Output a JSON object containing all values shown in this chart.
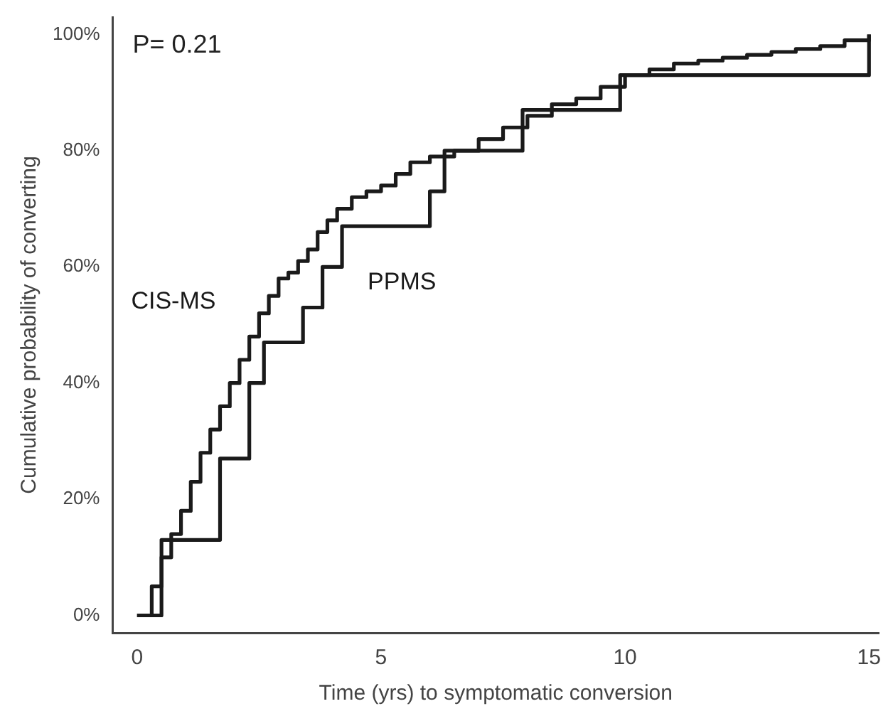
{
  "chart_data": {
    "type": "step",
    "xlabel": "Time (yrs) to symptomatic conversion",
    "ylabel": "Cumulative probability of converting",
    "annotations": [
      "P= 0.21"
    ],
    "xlim": [
      -0.5,
      15.2
    ],
    "xticks": [
      0,
      5,
      10,
      15
    ],
    "ylim": [
      -3,
      103
    ],
    "yticks": [
      {
        "value": 0,
        "label": "0%"
      },
      {
        "value": 20,
        "label": "20%"
      },
      {
        "value": 40,
        "label": "40%"
      },
      {
        "value": 60,
        "label": "60%"
      },
      {
        "value": 80,
        "label": "80%"
      },
      {
        "value": 100,
        "label": "100%"
      }
    ],
    "grid": false,
    "legend": false,
    "marker": "none",
    "line_style": "solid",
    "series": [
      {
        "name": "CIS-MS",
        "color": "#1a1a1a",
        "x": [
          0,
          0.3,
          0.5,
          0.7,
          0.9,
          1.1,
          1.3,
          1.5,
          1.7,
          1.9,
          2.1,
          2.3,
          2.5,
          2.7,
          2.9,
          3.1,
          3.3,
          3.5,
          3.7,
          3.9,
          4.1,
          4.4,
          4.7,
          5.0,
          5.3,
          5.6,
          6.0,
          6.5,
          7.0,
          7.5,
          8.0,
          8.5,
          9.0,
          9.5,
          10.0,
          10.5,
          11.0,
          11.5,
          12.0,
          12.5,
          13.0,
          13.5,
          14.0,
          14.5,
          15.0
        ],
        "values": [
          0,
          5,
          10,
          14,
          18,
          23,
          28,
          32,
          36,
          40,
          44,
          48,
          52,
          55,
          58,
          59,
          61,
          63,
          66,
          68,
          70,
          72,
          73,
          74,
          76,
          78,
          79,
          80,
          82,
          84,
          86,
          88,
          89,
          91,
          93,
          94,
          95,
          95.5,
          96,
          96.5,
          97,
          97.5,
          98,
          99,
          100
        ]
      },
      {
        "name": "PPMS",
        "color": "#1a1a1a",
        "x": [
          0,
          0.5,
          1.7,
          2.3,
          2.6,
          3.4,
          3.8,
          4.2,
          6.0,
          6.3,
          7.9,
          9.9,
          15.0
        ],
        "values": [
          0,
          13,
          27,
          40,
          47,
          53,
          60,
          67,
          73,
          80,
          87,
          93,
          100
        ]
      }
    ]
  }
}
